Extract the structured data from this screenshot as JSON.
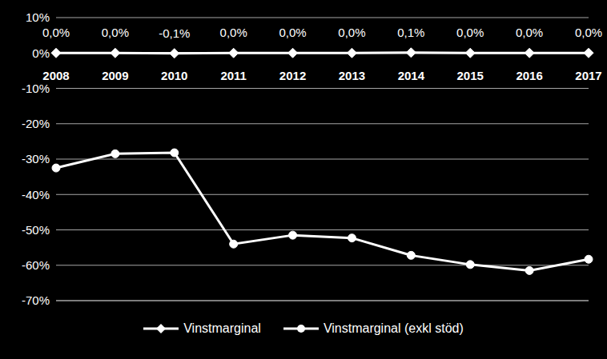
{
  "chart_data": {
    "type": "line",
    "categories": [
      "2008",
      "2009",
      "2010",
      "2011",
      "2012",
      "2013",
      "2014",
      "2015",
      "2016",
      "2017"
    ],
    "series": [
      {
        "name": "Vinstmarginal",
        "color": "#ffffff",
        "marker": "diamond",
        "values": [
          0.0,
          0.0,
          -0.1,
          0.0,
          0.0,
          0.0,
          0.1,
          0.0,
          0.0,
          0.0
        ],
        "data_labels": true,
        "value_labels": [
          "0,0%",
          "0,0%",
          "-0,1%",
          "0,0%",
          "0,0%",
          "0,0%",
          "0,1%",
          "0,0%",
          "0,0%",
          "0,0%"
        ]
      },
      {
        "name": "Vinstmarginal (exkl stöd)",
        "color": "#ffffff",
        "marker": "circle",
        "values": [
          -32.5,
          -28.5,
          -28.2,
          -54.0,
          -51.5,
          -52.3,
          -57.2,
          -59.8,
          -61.5,
          -58.3
        ]
      }
    ],
    "ylim": [
      -70,
      10
    ],
    "yticks": [
      {
        "value": 10,
        "label": "10%"
      },
      {
        "value": 0,
        "label": "0%"
      },
      {
        "value": -10,
        "label": "-10%"
      },
      {
        "value": -20,
        "label": "-20%"
      },
      {
        "value": -30,
        "label": "-30%"
      },
      {
        "value": -40,
        "label": "-40%"
      },
      {
        "value": -50,
        "label": "-50%"
      },
      {
        "value": -60,
        "label": "-60%"
      },
      {
        "value": -70,
        "label": "-70%"
      }
    ],
    "grid": true,
    "legend": "bottom"
  }
}
